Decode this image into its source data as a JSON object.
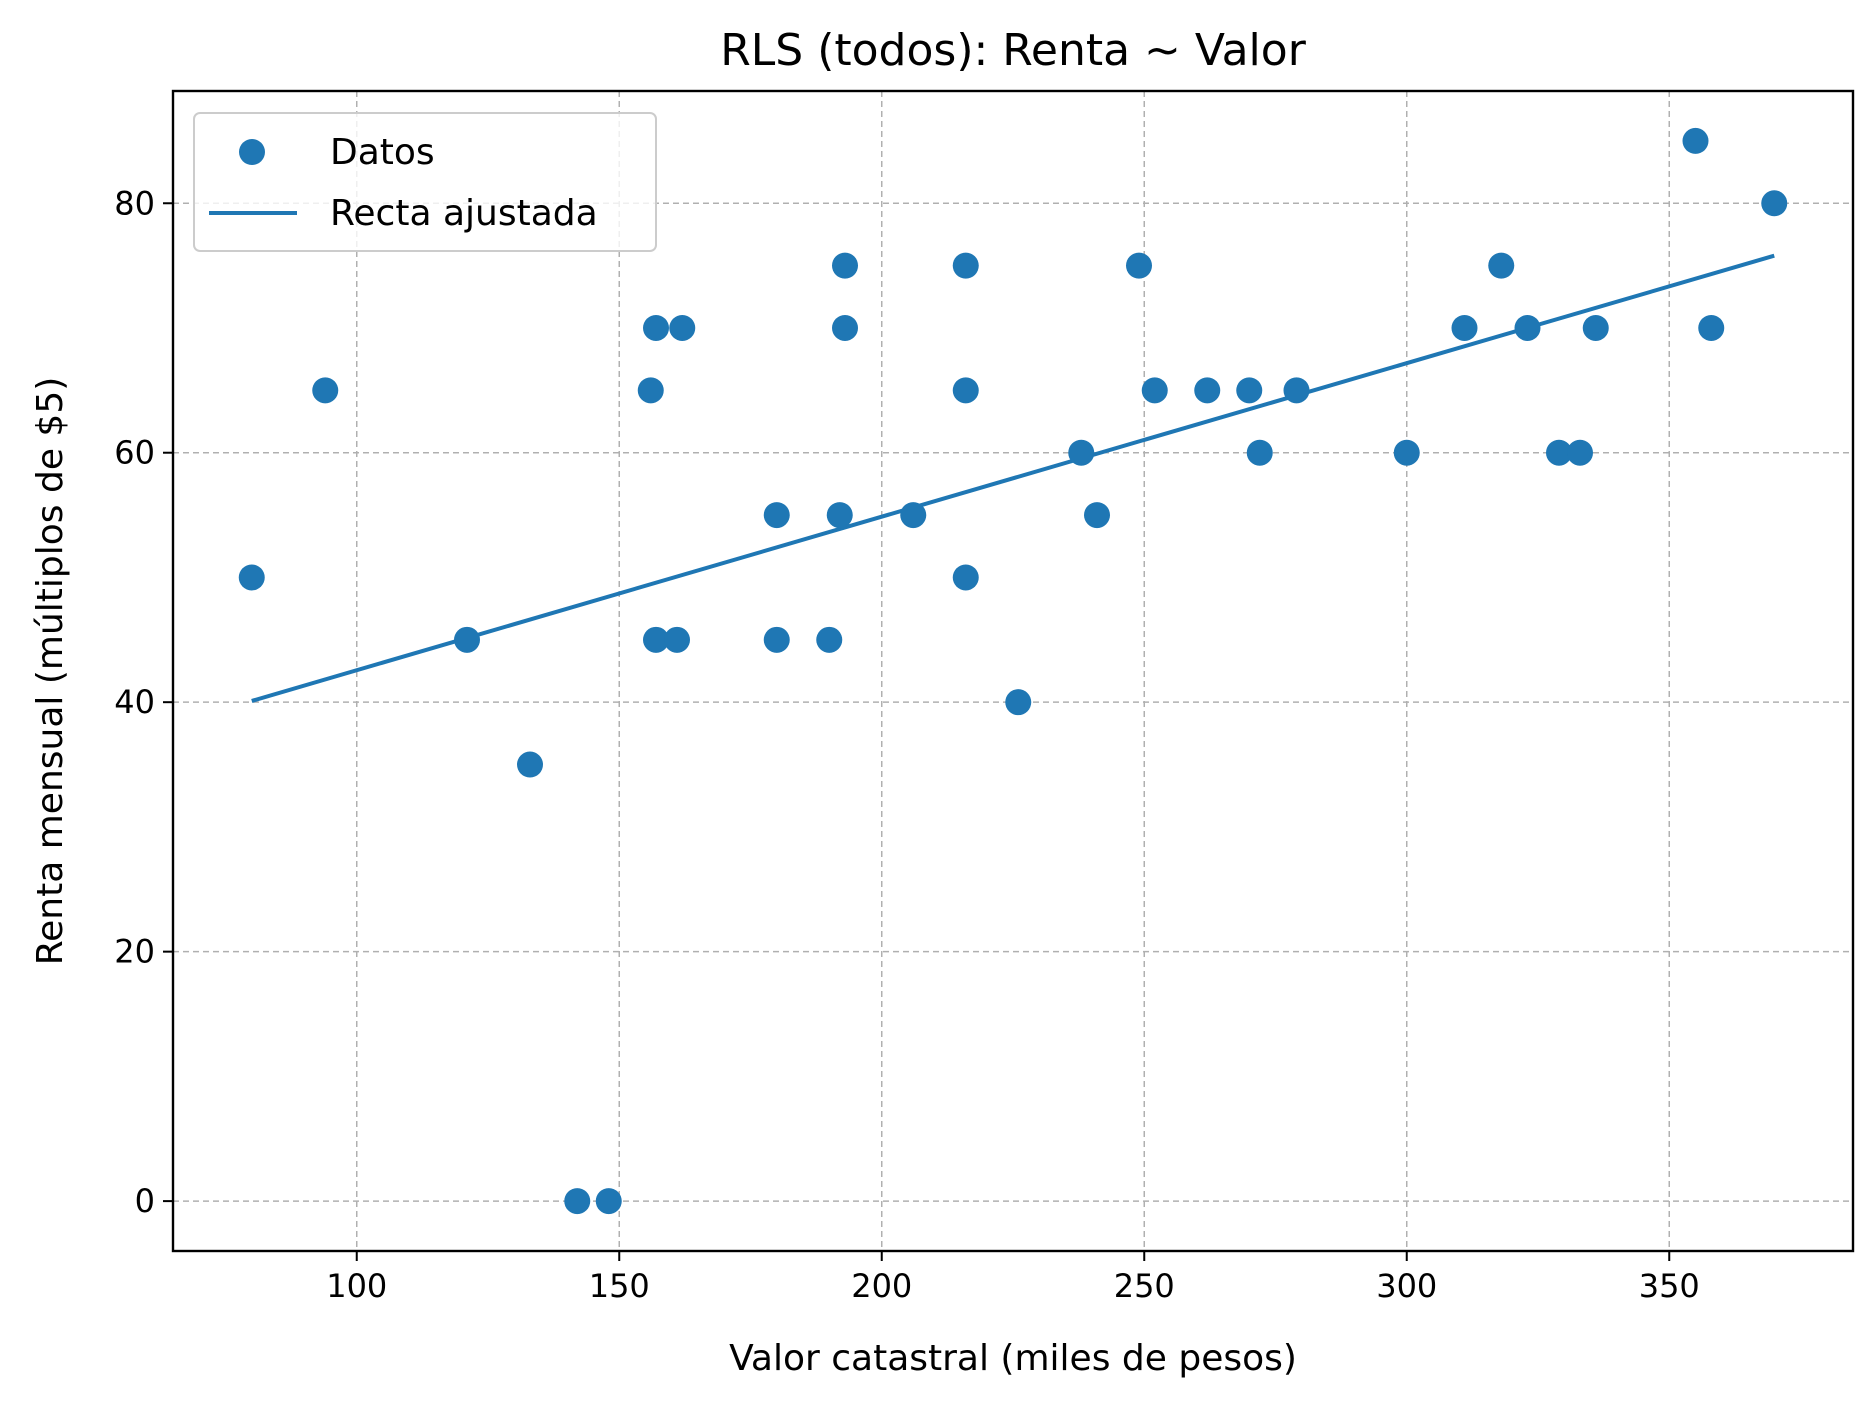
{
  "chart_data": {
    "type": "scatter",
    "title": "RLS (todos): Renta ~ Valor",
    "xlabel": "Valor catastral (miles de pesos)",
    "ylabel": "Renta mensual (múltiplos de $5)",
    "xlim": [
      65,
      385
    ],
    "ylim": [
      -4,
      89
    ],
    "xticks": [
      100,
      150,
      200,
      250,
      300,
      350
    ],
    "yticks": [
      0,
      20,
      40,
      60,
      80
    ],
    "grid": true,
    "legend_position": "top-left",
    "colors": {
      "series": "#1f77b4"
    },
    "series": [
      {
        "name": "Datos",
        "kind": "scatter",
        "points": [
          [
            80,
            50
          ],
          [
            94,
            65
          ],
          [
            121,
            45
          ],
          [
            133,
            35
          ],
          [
            142,
            0
          ],
          [
            148,
            0
          ],
          [
            156,
            65
          ],
          [
            157,
            70
          ],
          [
            157,
            45
          ],
          [
            161,
            45
          ],
          [
            162,
            70
          ],
          [
            180,
            55
          ],
          [
            180,
            45
          ],
          [
            190,
            45
          ],
          [
            192,
            55
          ],
          [
            193,
            70
          ],
          [
            193,
            75
          ],
          [
            206,
            55
          ],
          [
            216,
            75
          ],
          [
            216,
            65
          ],
          [
            216,
            50
          ],
          [
            226,
            40
          ],
          [
            238,
            60
          ],
          [
            241,
            55
          ],
          [
            249,
            75
          ],
          [
            252,
            65
          ],
          [
            262,
            65
          ],
          [
            270,
            65
          ],
          [
            272,
            60
          ],
          [
            279,
            65
          ],
          [
            300,
            60
          ],
          [
            311,
            70
          ],
          [
            318,
            75
          ],
          [
            323,
            70
          ],
          [
            329,
            60
          ],
          [
            333,
            60
          ],
          [
            336,
            70
          ],
          [
            355,
            85
          ],
          [
            358,
            70
          ],
          [
            370,
            80
          ]
        ]
      },
      {
        "name": "Recta ajustada",
        "kind": "line",
        "points": [
          [
            80,
            40.1
          ],
          [
            370,
            75.8
          ]
        ]
      }
    ]
  }
}
